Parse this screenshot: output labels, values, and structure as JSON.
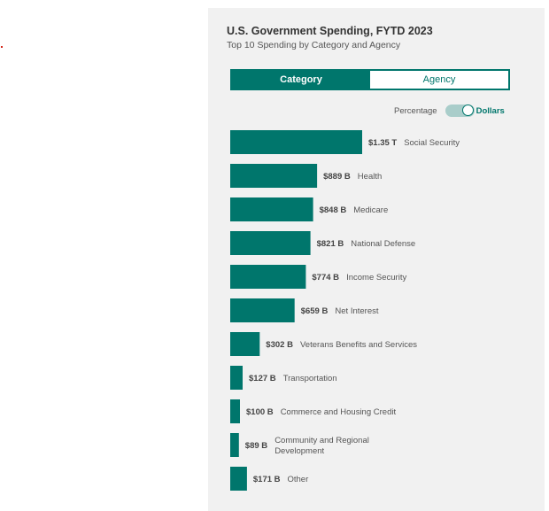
{
  "header": {
    "title": "U.S. Government Spending, FYTD 2023",
    "subtitle": "Top 10 Spending by Category and Agency"
  },
  "tabs": [
    {
      "label": "Category",
      "active": true
    },
    {
      "label": "Agency",
      "active": false
    }
  ],
  "toggle": {
    "left_label": "Percentage",
    "right_label": "Dollars",
    "selected": "Dollars"
  },
  "colors": {
    "bar": "#00766c",
    "accent": "#00766c",
    "panel": "#f1f1f1"
  },
  "chart_data": {
    "type": "bar",
    "orientation": "horizontal",
    "unit": "USD billions",
    "categories": [
      "Social Security",
      "Health",
      "Medicare",
      "National Defense",
      "Income Security",
      "Net Interest",
      "Veterans Benefits and Services",
      "Transportation",
      "Commerce and Housing Credit",
      "Community and Regional Development",
      "Other"
    ],
    "values": [
      1350,
      889,
      848,
      821,
      774,
      659,
      302,
      127,
      100,
      89,
      171
    ],
    "value_labels": [
      "$1.35 T",
      "$889 B",
      "$848 B",
      "$821 B",
      "$774 B",
      "$659 B",
      "$302 B",
      "$127 B",
      "$100 B",
      "$89 B",
      "$171 B"
    ],
    "category_lines": [
      [
        "Social Security"
      ],
      [
        "Health"
      ],
      [
        "Medicare"
      ],
      [
        "National Defense"
      ],
      [
        "Income Security"
      ],
      [
        "Net Interest"
      ],
      [
        "Veterans Benefits and Services"
      ],
      [
        "Transportation"
      ],
      [
        "Commerce and Housing Credit"
      ],
      [
        "Community and Regional",
        "Development"
      ],
      [
        "Other"
      ]
    ],
    "grid": false,
    "legend": "none"
  }
}
